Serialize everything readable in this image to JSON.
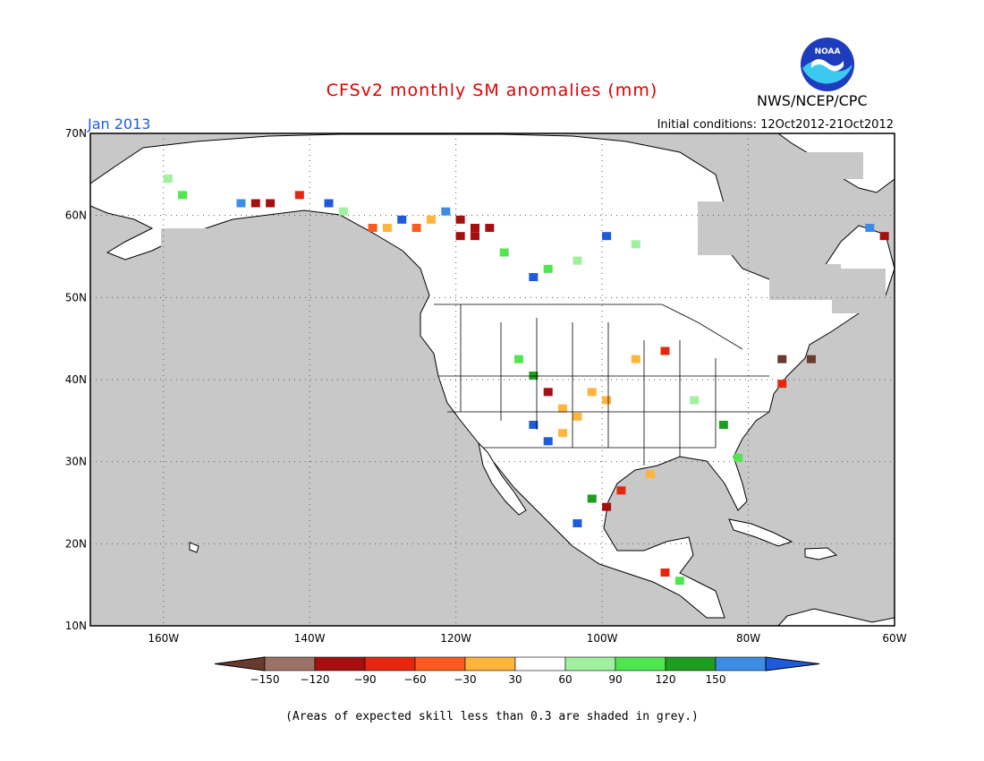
{
  "title": "CFSv2 monthly SM anomalies (mm)",
  "valid_month": "Jan 2013",
  "initial_conditions": "Initial conditions: 12Oct2012-21Oct2012",
  "agency": "NWS/NCEP/CPC",
  "logo_text": "NOAA",
  "footnote": "(Areas of expected skill less than 0.3 are shaded in grey.)",
  "map": {
    "lon_range": [
      -170,
      -60
    ],
    "lat_range": [
      10,
      70
    ],
    "lat_ticks": [
      {
        "value": 70,
        "label": "70N"
      },
      {
        "value": 60,
        "label": "60N"
      },
      {
        "value": 50,
        "label": "50N"
      },
      {
        "value": 40,
        "label": "40N"
      },
      {
        "value": 30,
        "label": "30N"
      },
      {
        "value": 20,
        "label": "20N"
      },
      {
        "value": 10,
        "label": "10N"
      }
    ],
    "lon_ticks": [
      {
        "value": -160,
        "label": "160W"
      },
      {
        "value": -140,
        "label": "140W"
      },
      {
        "value": -120,
        "label": "120W"
      },
      {
        "value": -100,
        "label": "100W"
      },
      {
        "value": -80,
        "label": "80W"
      },
      {
        "value": -60,
        "label": "60W"
      }
    ],
    "grid": "dotted",
    "colors": {
      "ocean": "#c8c8c8",
      "low_skill": "#c8c8c8",
      "land_white": "#ffffff",
      "coast": "#000000"
    }
  },
  "colorbar": {
    "labels": [
      "−150",
      "−120",
      "−90",
      "−60",
      "−30",
      "30",
      "60",
      "90",
      "120",
      "150"
    ],
    "colors": [
      "#6b3a2e",
      "#9c7268",
      "#a50f0f",
      "#e6260f",
      "#ff5a1e",
      "#ffb43c",
      "#ffffff",
      "#a0f0a0",
      "#50e650",
      "#1e9e1e",
      "#3c8ce6",
      "#1e5adc"
    ]
  },
  "anomaly_cells": [
    {
      "lon": -160,
      "lat": 64,
      "cat": "g1"
    },
    {
      "lon": -158,
      "lat": 62,
      "cat": "g2"
    },
    {
      "lon": -150,
      "lat": 61,
      "cat": "b1"
    },
    {
      "lon": -148,
      "lat": 61,
      "cat": "r1"
    },
    {
      "lon": -146,
      "lat": 61,
      "cat": "r1"
    },
    {
      "lon": -142,
      "lat": 62,
      "cat": "r2"
    },
    {
      "lon": -138,
      "lat": 61,
      "cat": "bl"
    },
    {
      "lon": -136,
      "lat": 60,
      "cat": "g1"
    },
    {
      "lon": -132,
      "lat": 58,
      "cat": "r3"
    },
    {
      "lon": -130,
      "lat": 58,
      "cat": "or"
    },
    {
      "lon": -128,
      "lat": 59,
      "cat": "bl"
    },
    {
      "lon": -126,
      "lat": 58,
      "cat": "r3"
    },
    {
      "lon": -124,
      "lat": 59,
      "cat": "or"
    },
    {
      "lon": -122,
      "lat": 60,
      "cat": "b1"
    },
    {
      "lon": -120,
      "lat": 59,
      "cat": "r1"
    },
    {
      "lon": -118,
      "lat": 58,
      "cat": "r1"
    },
    {
      "lon": -116,
      "lat": 58,
      "cat": "r1"
    },
    {
      "lon": -118,
      "lat": 57,
      "cat": "r1"
    },
    {
      "lon": -120,
      "lat": 57,
      "cat": "r1"
    },
    {
      "lon": -114,
      "lat": 55,
      "cat": "g2"
    },
    {
      "lon": -110,
      "lat": 52,
      "cat": "bl"
    },
    {
      "lon": -108,
      "lat": 53,
      "cat": "g2"
    },
    {
      "lon": -104,
      "lat": 54,
      "cat": "g1"
    },
    {
      "lon": -100,
      "lat": 57,
      "cat": "bl"
    },
    {
      "lon": -96,
      "lat": 56,
      "cat": "g1"
    },
    {
      "lon": -112,
      "lat": 42,
      "cat": "g2"
    },
    {
      "lon": -110,
      "lat": 40,
      "cat": "g3"
    },
    {
      "lon": -108,
      "lat": 38,
      "cat": "r1"
    },
    {
      "lon": -106,
      "lat": 36,
      "cat": "or"
    },
    {
      "lon": -104,
      "lat": 35,
      "cat": "or"
    },
    {
      "lon": -110,
      "lat": 34,
      "cat": "bl"
    },
    {
      "lon": -108,
      "lat": 32,
      "cat": "bl"
    },
    {
      "lon": -106,
      "lat": 33,
      "cat": "or"
    },
    {
      "lon": -102,
      "lat": 38,
      "cat": "or"
    },
    {
      "lon": -100,
      "lat": 37,
      "cat": "or"
    },
    {
      "lon": -96,
      "lat": 42,
      "cat": "or"
    },
    {
      "lon": -92,
      "lat": 43,
      "cat": "r2"
    },
    {
      "lon": -88,
      "lat": 37,
      "cat": "g1"
    },
    {
      "lon": -84,
      "lat": 34,
      "cat": "g3"
    },
    {
      "lon": -82,
      "lat": 30,
      "cat": "g2"
    },
    {
      "lon": -76,
      "lat": 39,
      "cat": "r2"
    },
    {
      "lon": -72,
      "lat": 42,
      "cat": "b2"
    },
    {
      "lon": -76,
      "lat": 42,
      "cat": "b2"
    },
    {
      "lon": -94,
      "lat": 28,
      "cat": "or"
    },
    {
      "lon": -98,
      "lat": 26,
      "cat": "r2"
    },
    {
      "lon": -100,
      "lat": 24,
      "cat": "r1"
    },
    {
      "lon": -102,
      "lat": 25,
      "cat": "g3"
    },
    {
      "lon": -104,
      "lat": 22,
      "cat": "bl"
    },
    {
      "lon": -92,
      "lat": 16,
      "cat": "r2"
    },
    {
      "lon": -90,
      "lat": 15,
      "cat": "g2"
    },
    {
      "lon": -62,
      "lat": 57,
      "cat": "r1"
    },
    {
      "lon": -64,
      "lat": 58,
      "cat": "b1"
    }
  ]
}
